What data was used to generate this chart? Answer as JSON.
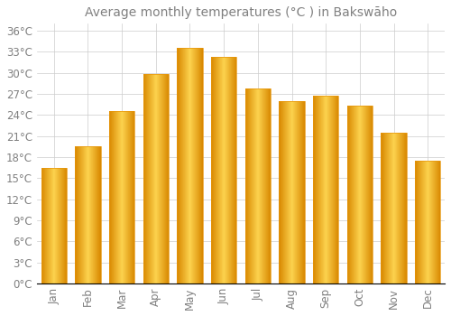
{
  "title": "Average monthly temperatures (°C ) in Bakswāho",
  "months": [
    "Jan",
    "Feb",
    "Mar",
    "Apr",
    "May",
    "Jun",
    "Jul",
    "Aug",
    "Sep",
    "Oct",
    "Nov",
    "Dec"
  ],
  "values": [
    16.5,
    19.5,
    24.5,
    29.8,
    33.5,
    32.3,
    27.8,
    26.0,
    26.8,
    25.3,
    21.5,
    17.5
  ],
  "bar_color_light": "#FFD54F",
  "bar_color_main": "#FFA000",
  "bar_color_edge": "#E8960A",
  "background_color": "#FFFFFF",
  "grid_color": "#CCCCCC",
  "text_color": "#808080",
  "ylim": [
    0,
    37
  ],
  "yticks": [
    0,
    3,
    6,
    9,
    12,
    15,
    18,
    21,
    24,
    27,
    30,
    33,
    36
  ],
  "title_fontsize": 10,
  "tick_fontsize": 8.5
}
